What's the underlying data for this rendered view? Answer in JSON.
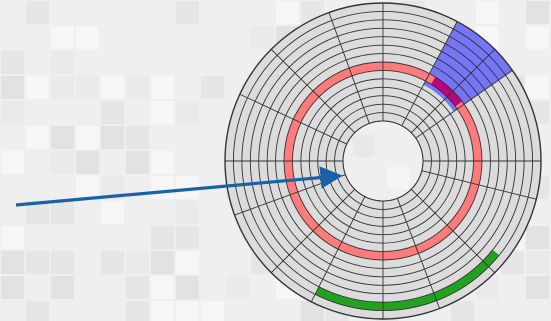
{
  "diagram": {
    "title": "",
    "disk": {
      "track_count": 14,
      "sector_count": 8,
      "platter_fill": "#dcdcdc",
      "line_color": "#333333"
    },
    "highlights": {
      "track": {
        "color": "#ff7b7b",
        "label": ""
      },
      "sector": {
        "color": "#6f6ff5",
        "label": ""
      },
      "cluster": {
        "color": "#21a321",
        "label": ""
      },
      "intersection": {
        "color": "#c1007f",
        "label": ""
      }
    },
    "arrow": {
      "color": "#1a62a8",
      "label": ""
    },
    "background": {
      "base_color": "#efefef",
      "tile_colors": [
        "#e6e6e6",
        "#f6f6f6",
        "#e2e2e2",
        "#eaeaea"
      ]
    }
  }
}
